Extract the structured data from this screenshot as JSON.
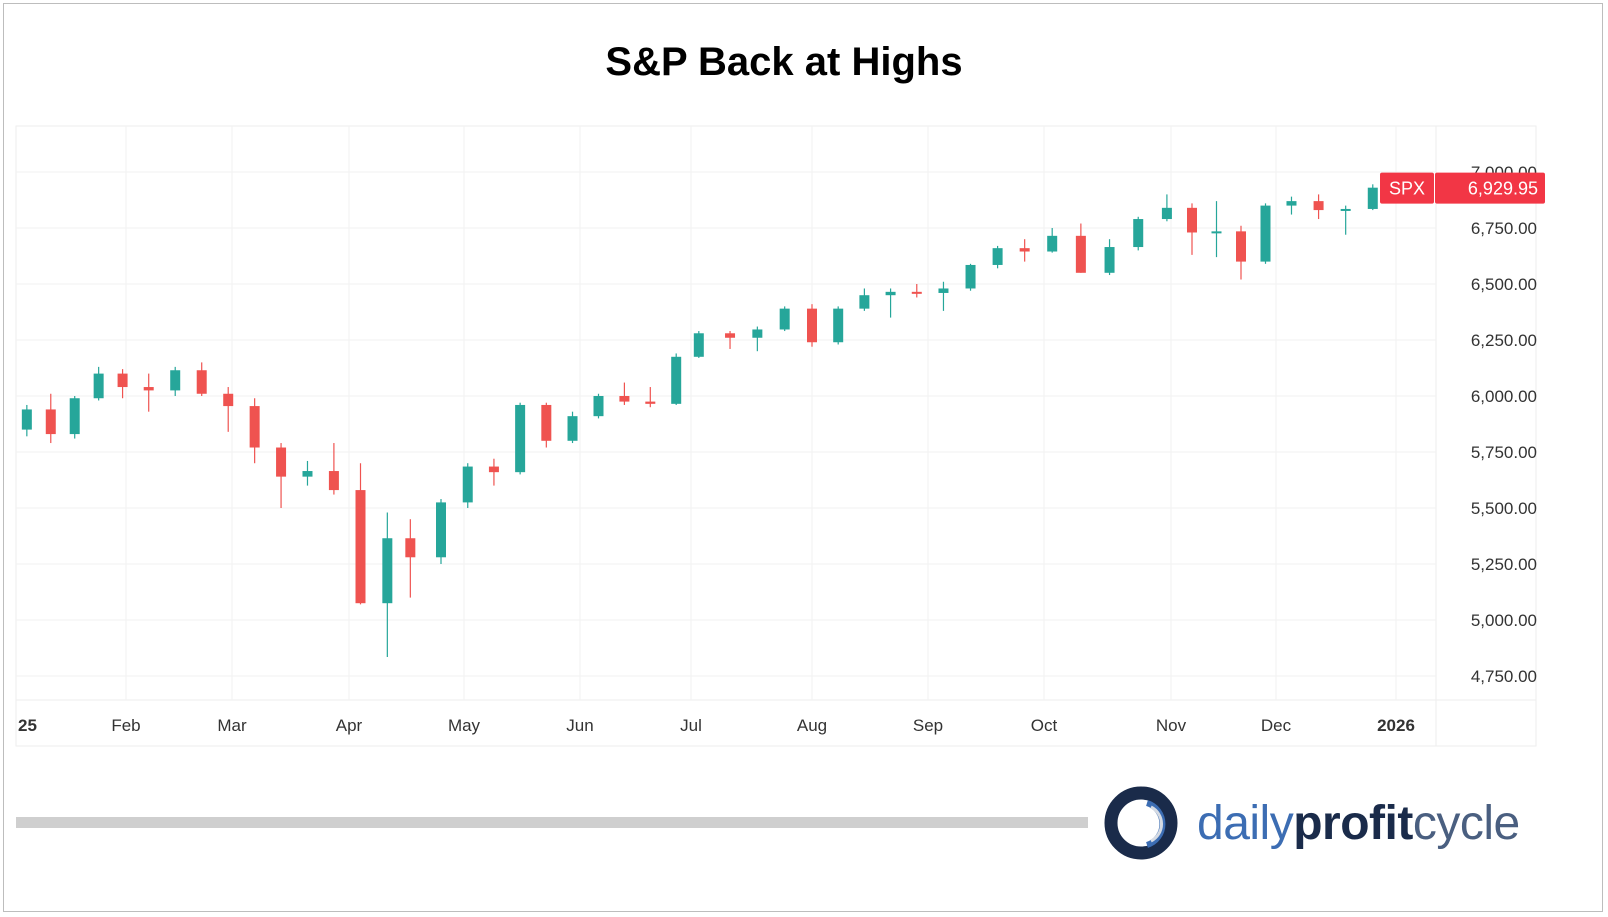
{
  "chart_data": {
    "type": "candlestick",
    "title": "S&P Back at Highs",
    "ticker": "SPX",
    "last_price": "6,929.95",
    "ylim": [
      4700,
      7100
    ],
    "y_ticks": [
      "4,750.00",
      "5,000.00",
      "5,250.00",
      "5,500.00",
      "5,750.00",
      "6,000.00",
      "6,250.00",
      "6,500.00",
      "6,750.00",
      "7,000.00"
    ],
    "y_tick_values": [
      4750,
      5000,
      5250,
      5500,
      5750,
      6000,
      6250,
      6500,
      6750,
      7000
    ],
    "x_ticks": [
      "25",
      "Feb",
      "Mar",
      "Apr",
      "May",
      "Jun",
      "Jul",
      "Aug",
      "Sep",
      "Oct",
      "Nov",
      "Dec",
      "2026"
    ],
    "x_tick_dates": [
      "2025-01-01",
      "2025-02-01",
      "2025-03-01",
      "2025-04-01",
      "2025-05-01",
      "2025-06-01",
      "2025-07-01",
      "2025-08-01",
      "2025-09-01",
      "2025-10-01",
      "2025-11-01",
      "2025-12-01",
      "2026-01-01"
    ],
    "grid": true,
    "colors": {
      "up": "#26a69a",
      "down": "#ef5350",
      "label_bg": "#f23645"
    },
    "candles_columns": [
      "date",
      "open",
      "high",
      "low",
      "close"
    ],
    "candles": [
      [
        "2025-01-03",
        5850,
        5960,
        5820,
        5940
      ],
      [
        "2025-01-10",
        5940,
        6010,
        5790,
        5830
      ],
      [
        "2025-01-17",
        5830,
        6000,
        5810,
        5990
      ],
      [
        "2025-01-24",
        5990,
        6130,
        5980,
        6100
      ],
      [
        "2025-01-31",
        6100,
        6120,
        5990,
        6040
      ],
      [
        "2025-02-07",
        6040,
        6100,
        5930,
        6025
      ],
      [
        "2025-02-14",
        6025,
        6130,
        6000,
        6115
      ],
      [
        "2025-02-21",
        6115,
        6150,
        6000,
        6010
      ],
      [
        "2025-02-28",
        6010,
        6040,
        5840,
        5955
      ],
      [
        "2025-03-07",
        5955,
        5990,
        5700,
        5770
      ],
      [
        "2025-03-14",
        5770,
        5790,
        5500,
        5640
      ],
      [
        "2025-03-21",
        5640,
        5710,
        5600,
        5665
      ],
      [
        "2025-03-28",
        5665,
        5790,
        5560,
        5580
      ],
      [
        "2025-04-04",
        5580,
        5700,
        5070,
        5075
      ],
      [
        "2025-04-11",
        5075,
        5480,
        4835,
        5365
      ],
      [
        "2025-04-17",
        5365,
        5450,
        5100,
        5280
      ],
      [
        "2025-04-25",
        5280,
        5540,
        5250,
        5525
      ],
      [
        "2025-05-02",
        5525,
        5700,
        5500,
        5685
      ],
      [
        "2025-05-09",
        5685,
        5720,
        5600,
        5660
      ],
      [
        "2025-05-16",
        5660,
        5970,
        5650,
        5960
      ],
      [
        "2025-05-23",
        5960,
        5970,
        5770,
        5800
      ],
      [
        "2025-05-30",
        5800,
        5930,
        5790,
        5910
      ],
      [
        "2025-06-06",
        5910,
        6010,
        5900,
        6000
      ],
      [
        "2025-06-13",
        6000,
        6060,
        5960,
        5975
      ],
      [
        "2025-06-20",
        5975,
        6040,
        5950,
        5965
      ],
      [
        "2025-06-27",
        5965,
        6190,
        5960,
        6175
      ],
      [
        "2025-07-03",
        6175,
        6290,
        6170,
        6280
      ],
      [
        "2025-07-11",
        6280,
        6290,
        6210,
        6260
      ],
      [
        "2025-07-18",
        6260,
        6310,
        6200,
        6297
      ],
      [
        "2025-07-25",
        6297,
        6400,
        6290,
        6390
      ],
      [
        "2025-08-01",
        6390,
        6410,
        6220,
        6240
      ],
      [
        "2025-08-08",
        6240,
        6400,
        6230,
        6390
      ],
      [
        "2025-08-15",
        6390,
        6480,
        6380,
        6450
      ],
      [
        "2025-08-22",
        6450,
        6480,
        6350,
        6465
      ],
      [
        "2025-08-29",
        6465,
        6500,
        6440,
        6460
      ],
      [
        "2025-09-05",
        6460,
        6510,
        6380,
        6480
      ],
      [
        "2025-09-12",
        6480,
        6590,
        6470,
        6585
      ],
      [
        "2025-09-19",
        6585,
        6670,
        6570,
        6660
      ],
      [
        "2025-09-26",
        6660,
        6700,
        6600,
        6645
      ],
      [
        "2025-10-03",
        6645,
        6750,
        6640,
        6715
      ],
      [
        "2025-10-10",
        6715,
        6770,
        6550,
        6550
      ],
      [
        "2025-10-17",
        6550,
        6700,
        6540,
        6665
      ],
      [
        "2025-10-24",
        6665,
        6800,
        6650,
        6790
      ],
      [
        "2025-10-31",
        6790,
        6900,
        6780,
        6840
      ],
      [
        "2025-11-07",
        6840,
        6860,
        6630,
        6730
      ],
      [
        "2025-11-14",
        6730,
        6870,
        6620,
        6735
      ],
      [
        "2025-11-21",
        6735,
        6760,
        6520,
        6600
      ],
      [
        "2025-11-28",
        6600,
        6860,
        6590,
        6850
      ],
      [
        "2025-12-05",
        6850,
        6890,
        6810,
        6870
      ],
      [
        "2025-12-12",
        6870,
        6900,
        6790,
        6830
      ],
      [
        "2025-12-19",
        6830,
        6850,
        6720,
        6835
      ],
      [
        "2025-12-26",
        6835,
        6945,
        6830,
        6930
      ]
    ]
  },
  "logo": {
    "part1": "daily",
    "part2": "profit",
    "part3": "cycle"
  }
}
